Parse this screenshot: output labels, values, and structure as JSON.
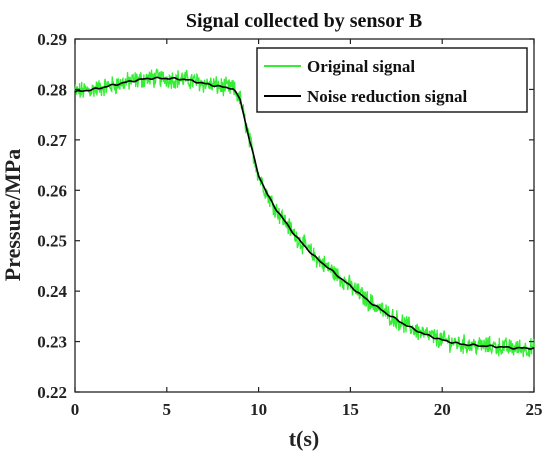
{
  "chart_data": {
    "type": "line",
    "title": "Signal collected by sensor B",
    "xlabel": "t(s)",
    "ylabel": "Pressure/MPa",
    "xlim": [
      0,
      25
    ],
    "ylim": [
      0.22,
      0.29
    ],
    "x_ticks": [
      "0",
      "5",
      "10",
      "15",
      "20",
      "25"
    ],
    "y_ticks": [
      "0.22",
      "0.23",
      "0.24",
      "0.25",
      "0.26",
      "0.27",
      "0.28",
      "0.29"
    ],
    "grid": false,
    "legend_position": "top-right",
    "series": [
      {
        "name": "Original signal",
        "color": "#33ee33",
        "noise_amplitude": 0.0016,
        "x": [
          0,
          1,
          2,
          3,
          4,
          5,
          6,
          7,
          8,
          8.6,
          9,
          9.5,
          10,
          10.5,
          11,
          12,
          13,
          14,
          15,
          16,
          17,
          18,
          19,
          20,
          21,
          22,
          23,
          24,
          25
        ],
        "y": [
          0.2795,
          0.28,
          0.2808,
          0.2816,
          0.2822,
          0.2822,
          0.282,
          0.2812,
          0.2805,
          0.2802,
          0.278,
          0.27,
          0.263,
          0.259,
          0.256,
          0.251,
          0.247,
          0.244,
          0.241,
          0.238,
          0.2355,
          0.2333,
          0.2315,
          0.2303,
          0.2295,
          0.2292,
          0.229,
          0.2287,
          0.2287
        ]
      },
      {
        "name": "Noise reduction signal",
        "color": "#000000",
        "x": [
          0,
          1,
          2,
          3,
          4,
          5,
          6,
          7,
          8,
          8.6,
          9,
          9.5,
          10,
          10.5,
          11,
          12,
          13,
          14,
          15,
          16,
          17,
          18,
          19,
          20,
          21,
          22,
          23,
          24,
          25
        ],
        "y": [
          0.2795,
          0.28,
          0.2808,
          0.2816,
          0.2822,
          0.2822,
          0.282,
          0.2812,
          0.2805,
          0.2802,
          0.278,
          0.27,
          0.263,
          0.259,
          0.256,
          0.251,
          0.247,
          0.244,
          0.241,
          0.238,
          0.2355,
          0.2333,
          0.2315,
          0.2303,
          0.2295,
          0.2292,
          0.229,
          0.2287,
          0.2287
        ]
      }
    ]
  }
}
